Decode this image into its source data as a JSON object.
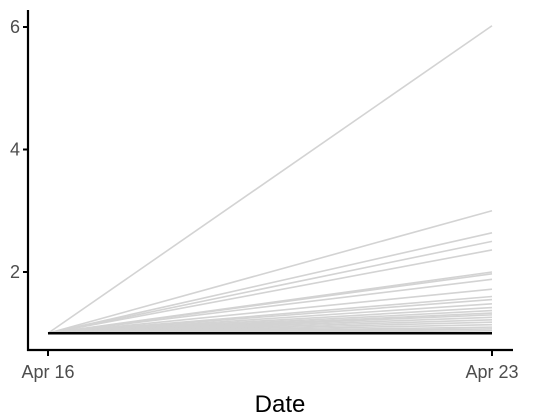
{
  "chart_data": {
    "type": "line",
    "title": "",
    "xlabel": "Date",
    "ylabel": "",
    "x": [
      "Apr 16",
      "Apr 23"
    ],
    "x_tick_labels": [
      "Apr 16",
      "Apr 23"
    ],
    "y_tick_values": [
      2,
      4,
      6
    ],
    "y_tick_labels": [
      "2",
      "4",
      "6"
    ],
    "ylim": [
      0.8,
      6.35
    ],
    "grid": false,
    "legend": "none",
    "colors": {
      "series": "#d3d3d3",
      "reference": "#000000",
      "axis": "#000000",
      "tick_label": "#4d4d4d"
    },
    "series": [
      {
        "values": [
          1,
          6.02
        ]
      },
      {
        "values": [
          1,
          3.0
        ]
      },
      {
        "values": [
          1,
          2.64
        ]
      },
      {
        "values": [
          1,
          2.5
        ]
      },
      {
        "values": [
          1,
          2.36
        ]
      },
      {
        "values": [
          1,
          2.0
        ]
      },
      {
        "values": [
          1,
          1.97
        ]
      },
      {
        "values": [
          1,
          1.88
        ]
      },
      {
        "values": [
          1,
          1.72
        ]
      },
      {
        "values": [
          1,
          1.6
        ]
      },
      {
        "values": [
          1,
          1.55
        ]
      },
      {
        "values": [
          1,
          1.48
        ]
      },
      {
        "values": [
          1,
          1.42
        ]
      },
      {
        "values": [
          1,
          1.37
        ]
      },
      {
        "values": [
          1,
          1.33
        ]
      },
      {
        "values": [
          1,
          1.3
        ]
      },
      {
        "values": [
          1,
          1.26
        ]
      },
      {
        "values": [
          1,
          1.22
        ]
      },
      {
        "values": [
          1,
          1.18
        ]
      },
      {
        "values": [
          1,
          1.14
        ]
      },
      {
        "values": [
          1,
          1.1
        ]
      },
      {
        "values": [
          1,
          1.07
        ]
      },
      {
        "values": [
          1,
          1.04
        ]
      }
    ],
    "reference_line": {
      "values": [
        1,
        1
      ]
    }
  }
}
